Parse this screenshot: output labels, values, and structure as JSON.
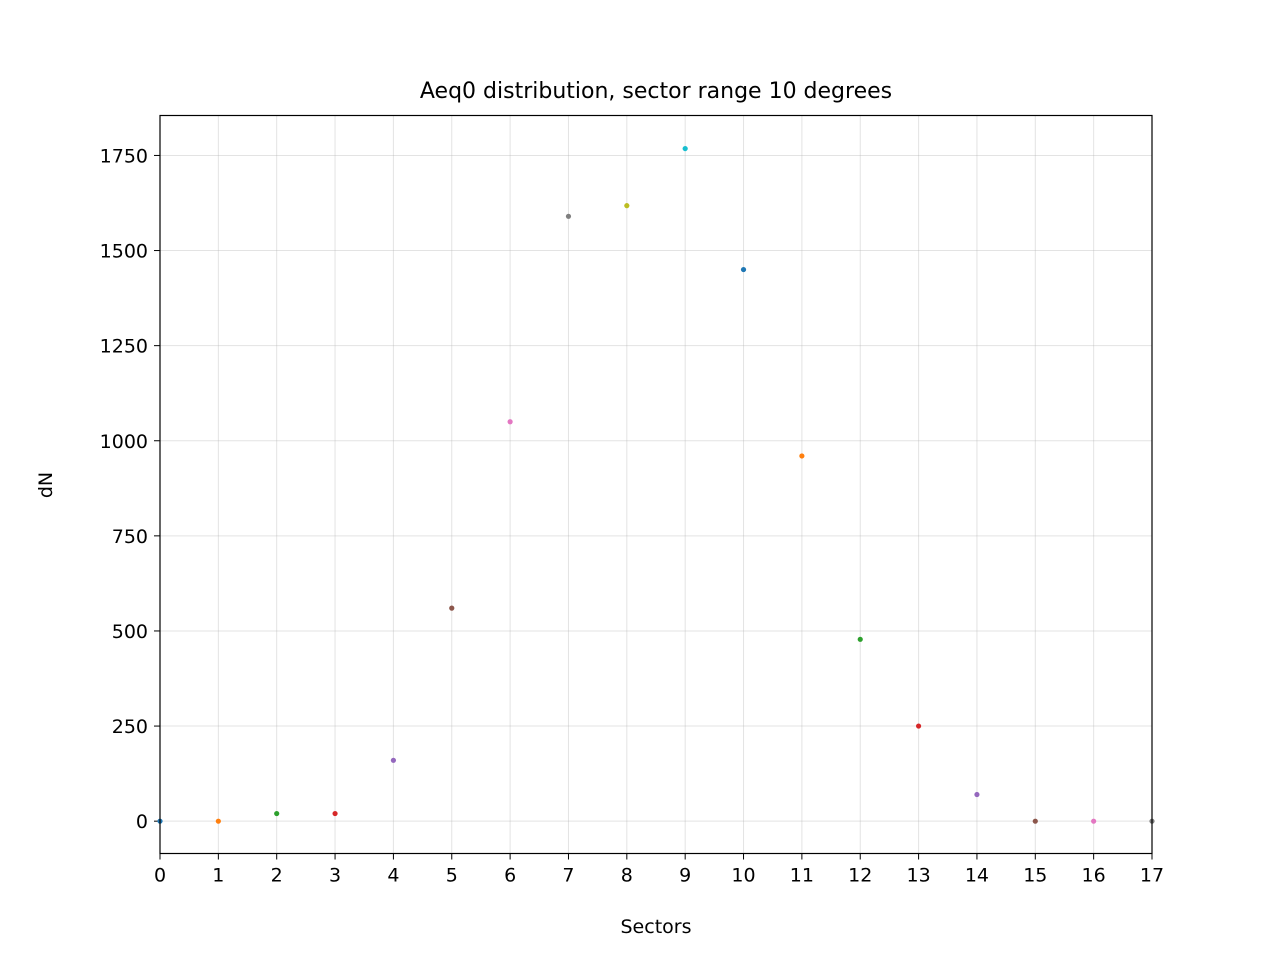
{
  "chart_data": {
    "type": "scatter",
    "title": "Aeq0 distribution, sector range 10 degrees",
    "xlabel": "Sectors",
    "ylabel": "dN",
    "xlim": [
      0,
      17
    ],
    "ylim": [
      -85,
      1855
    ],
    "xticks": [
      0,
      1,
      2,
      3,
      4,
      5,
      6,
      7,
      8,
      9,
      10,
      11,
      12,
      13,
      14,
      15,
      16,
      17
    ],
    "yticks": [
      0,
      250,
      500,
      750,
      1000,
      1250,
      1500,
      1750
    ],
    "grid": true,
    "x": [
      0,
      1,
      2,
      3,
      4,
      5,
      6,
      7,
      8,
      9,
      10,
      11,
      12,
      13,
      14,
      15,
      16,
      17
    ],
    "values": [
      0,
      0,
      20,
      20,
      160,
      560,
      1050,
      1590,
      1618,
      1768,
      1450,
      960,
      478,
      250,
      70,
      0,
      0,
      0
    ],
    "colors": [
      "#1f77b4",
      "#ff7f0e",
      "#2ca02c",
      "#d62728",
      "#9467bd",
      "#8c564b",
      "#e377c2",
      "#7f7f7f",
      "#bcbd22",
      "#17becf",
      "#1f77b4",
      "#ff7f0e",
      "#2ca02c",
      "#d62728",
      "#9467bd",
      "#8c564b",
      "#e377c2",
      "#7f7f7f"
    ]
  }
}
